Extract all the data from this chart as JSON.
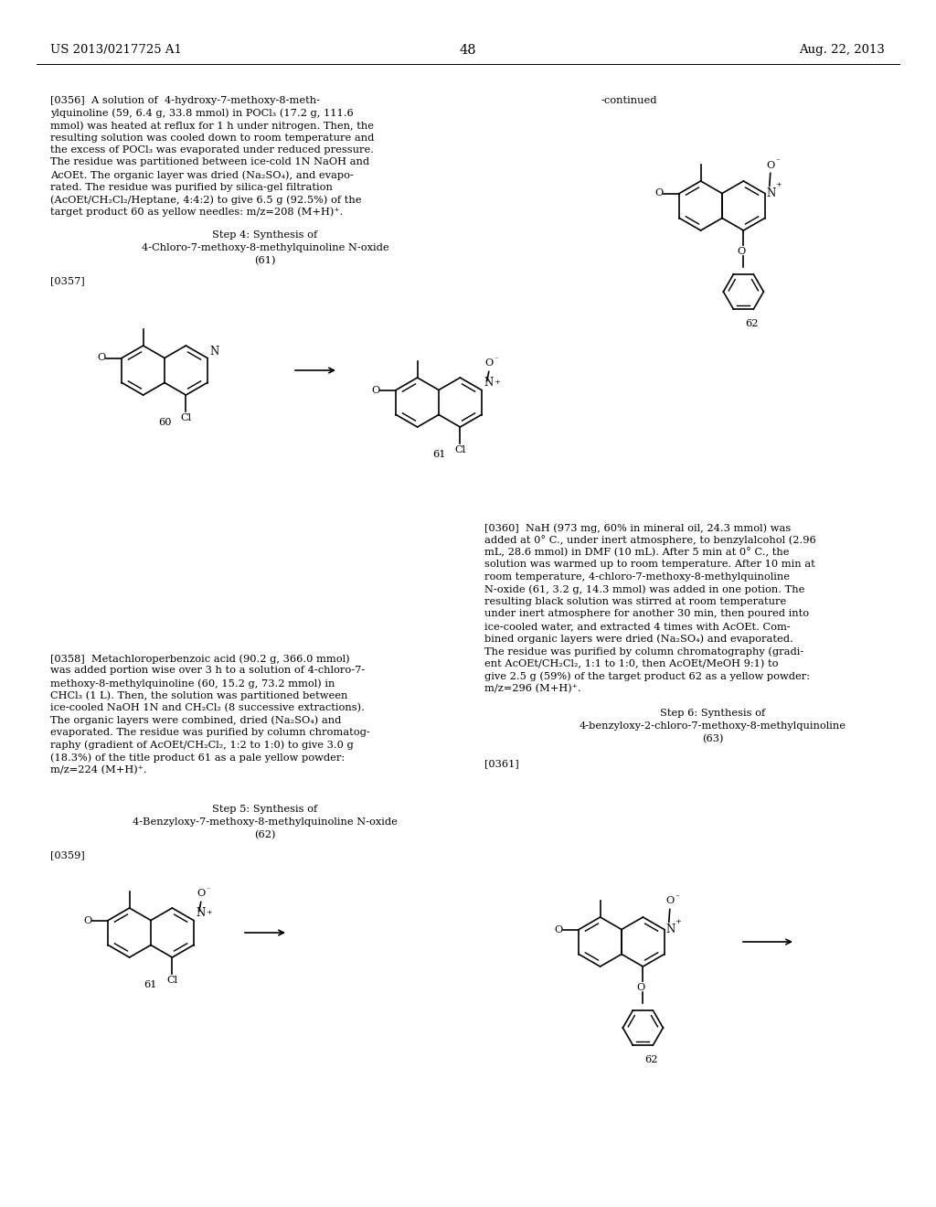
{
  "page_number": "48",
  "patent_number": "US 2013/0217725 A1",
  "patent_date": "Aug. 22, 2013",
  "background_color": "#ffffff",
  "text_color": "#000000",
  "font_size_body": 8.5,
  "font_size_header": 10,
  "continued_label": "-continued",
  "paragraphs": [
    {
      "id": "0356",
      "text": "[0356]  A solution of  4-hydroxy-7-methoxy-8-meth-\nylquinoline (59, 6.4 g, 33.8 mmol) in POCl₃ (17.2 g, 111.6\nmmol) was heated at reflux for 1 h under nitrogen. Then, the\nresulting solution was cooled down to room temperature and\nthe excess of POCl₃ was evaporated under reduced pressure.\nThe residue was partitioned between ice-cold 1N NaOH and\nAcOEt. The organic layer was dried (Na₂SO₄), and evapo-\nrated. The residue was purified by silica-gel filtration\n(AcOEt/CH₂Cl₂/Heptane, 4:4:2) to give 6.5 g (92.5%) of the\ntarget product 60 as yellow needles: m/z=208 (M+H)⁺."
    },
    {
      "id": "step4",
      "text": "Step 4: Synthesis of\n4-Chloro-7-methoxy-8-methylquinoline N-oxide\n(61)"
    },
    {
      "id": "0357",
      "text": "[0357]"
    },
    {
      "id": "0358",
      "text": "[0358]  Metachloroperbenzoic acid (90.2 g, 366.0 mmol)\nwas added portion wise over 3 h to a solution of 4-chloro-7-\nmethoxy-8-methylquinoline (60, 15.2 g, 73.2 mmol) in\nCHCl₃ (1 L). Then, the solution was partitioned between\nice-cooled NaOH 1N and CH₂Cl₂ (8 successive extractions).\nThe organic layers were combined, dried (Na₂SO₄) and\nevaporated. The residue was purified by column chromatog-\nraphy (gradient of AcOEt/CH₂Cl₂, 1:2 to 1:0) to give 3.0 g\n(18.3%) of the title product 61 as a pale yellow powder:\nm/z=224 (M+H)⁺."
    },
    {
      "id": "step5",
      "text": "Step 5: Synthesis of\n4-Benzyloxy-7-methoxy-8-methylquinoline N-oxide\n(62)"
    },
    {
      "id": "0359",
      "text": "[0359]"
    },
    {
      "id": "0360",
      "text": "[0360]  NaH (973 mg, 60% in mineral oil, 24.3 mmol) was\nadded at 0° C., under inert atmosphere, to benzylalcohol (2.96\nmL, 28.6 mmol) in DMF (10 mL). After 5 min at 0° C., the\nsolution was warmed up to room temperature. After 10 min at\nroom temperature, 4-chloro-7-methoxy-8-methylquinoline\nN-oxide (61, 3.2 g, 14.3 mmol) was added in one potion. The\nresulting black solution was stirred at room temperature\nunder inert atmosphere for another 30 min, then poured into\nice-cooled water, and extracted 4 times with AcOEt. Com-\nbined organic layers were dried (Na₂SO₄) and evaporated.\nThe residue was purified by column chromatography (gradi-\nent AcOEt/CH₂Cl₂, 1:1 to 1:0, then AcOEt/MeOH 9:1) to\ngive 2.5 g (59%) of the target product 62 as a yellow powder:\nm/z=296 (M+H)⁺."
    },
    {
      "id": "step6",
      "text": "Step 6: Synthesis of\n4-benzyloxy-2-chloro-7-methoxy-8-methylquinoline\n(63)"
    },
    {
      "id": "0361",
      "text": "[0361]"
    }
  ]
}
